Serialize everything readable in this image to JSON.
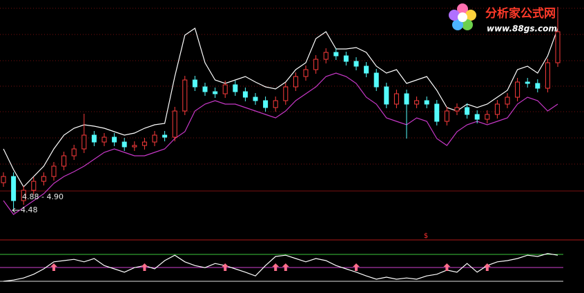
{
  "chart_data": {
    "type": "candlestick",
    "ylim": [
      4.0,
      10.6
    ],
    "up_color": "#ff3c3c",
    "down_color": "#54fcfc",
    "open": [
      5.3,
      5.48,
      4.78,
      5.08,
      5.34,
      5.48,
      5.78,
      6.08,
      6.28,
      6.68,
      6.48,
      6.62,
      6.48,
      6.34,
      6.38,
      6.48,
      6.68,
      6.62,
      7.38,
      8.28,
      8.08,
      7.94,
      7.88,
      8.14,
      7.94,
      7.78,
      7.68,
      7.48,
      7.68,
      8.08,
      8.38,
      8.58,
      8.88,
      9.08,
      8.98,
      8.82,
      8.68,
      8.48,
      8.08,
      7.58,
      7.88,
      7.58,
      7.68,
      7.58,
      7.08,
      7.38,
      7.48,
      7.28,
      7.14,
      7.28,
      7.58,
      7.78,
      8.22,
      8.18,
      8.04,
      8.78
    ],
    "high": [
      5.6,
      5.6,
      5.2,
      5.46,
      5.6,
      5.9,
      6.2,
      6.4,
      7.3,
      6.8,
      6.74,
      6.74,
      6.6,
      6.5,
      6.6,
      6.8,
      6.8,
      7.5,
      8.4,
      8.4,
      8.2,
      8.06,
      8.26,
      8.26,
      8.06,
      7.9,
      7.8,
      7.8,
      8.2,
      8.5,
      8.7,
      9.0,
      9.2,
      9.2,
      9.1,
      8.94,
      8.8,
      8.6,
      8.2,
      8.0,
      8.0,
      7.8,
      7.8,
      7.7,
      7.5,
      7.6,
      7.6,
      7.4,
      7.4,
      7.7,
      7.9,
      8.34,
      8.34,
      8.3,
      8.9,
      10.4
    ],
    "low": [
      5.18,
      4.48,
      4.66,
      4.96,
      5.22,
      5.36,
      5.66,
      5.96,
      6.16,
      6.36,
      6.36,
      6.36,
      6.22,
      6.22,
      6.26,
      6.36,
      6.5,
      6.5,
      7.26,
      7.96,
      7.82,
      7.76,
      7.76,
      7.82,
      7.66,
      7.56,
      7.36,
      7.36,
      7.56,
      7.96,
      8.26,
      8.46,
      8.76,
      8.86,
      8.7,
      8.56,
      8.36,
      7.96,
      7.46,
      7.46,
      6.58,
      7.46,
      7.46,
      6.96,
      6.96,
      7.26,
      7.16,
      7.02,
      7.02,
      7.16,
      7.46,
      7.66,
      8.06,
      7.92,
      7.92,
      8.66
    ],
    "close": [
      5.48,
      4.78,
      5.08,
      5.34,
      5.48,
      5.78,
      6.08,
      6.28,
      6.68,
      6.48,
      6.62,
      6.48,
      6.34,
      6.38,
      6.48,
      6.68,
      6.62,
      7.38,
      8.28,
      8.08,
      7.94,
      7.88,
      8.14,
      7.94,
      7.78,
      7.68,
      7.48,
      7.68,
      8.08,
      8.38,
      8.58,
      8.88,
      9.08,
      8.98,
      8.82,
      8.68,
      8.48,
      8.08,
      7.58,
      7.88,
      7.58,
      7.68,
      7.58,
      7.08,
      7.38,
      7.48,
      7.28,
      7.14,
      7.28,
      7.58,
      7.78,
      8.22,
      8.18,
      8.04,
      8.78,
      9.68
    ],
    "lines": [
      {
        "color": "#ffffff",
        "values": [
          6.28,
          5.68,
          5.18,
          5.48,
          5.78,
          6.28,
          6.68,
          6.88,
          6.98,
          6.94,
          6.88,
          6.78,
          6.68,
          6.74,
          6.88,
          6.98,
          7.02,
          8.38,
          9.58,
          9.78,
          8.78,
          8.28,
          8.18,
          8.28,
          8.38,
          8.22,
          8.08,
          8.02,
          8.22,
          8.58,
          8.78,
          9.48,
          9.68,
          9.18,
          9.18,
          9.22,
          9.08,
          8.68,
          8.48,
          8.58,
          8.18,
          8.28,
          8.38,
          7.98,
          7.48,
          7.38,
          7.58,
          7.48,
          7.58,
          7.78,
          7.98,
          8.58,
          8.68,
          8.48,
          8.98,
          9.78
        ]
      },
      {
        "color": "#c838c8",
        "values": [
          4.78,
          4.38,
          4.58,
          4.78,
          4.98,
          5.28,
          5.48,
          5.62,
          5.78,
          5.98,
          6.18,
          6.28,
          6.18,
          6.08,
          6.08,
          6.18,
          6.28,
          6.58,
          6.78,
          7.38,
          7.58,
          7.68,
          7.58,
          7.58,
          7.48,
          7.38,
          7.28,
          7.18,
          7.38,
          7.68,
          7.88,
          8.08,
          8.38,
          8.48,
          8.38,
          8.18,
          7.78,
          7.58,
          7.18,
          7.08,
          6.98,
          7.18,
          7.08,
          6.58,
          6.38,
          6.78,
          6.98,
          7.08,
          6.98,
          7.08,
          7.18,
          7.58,
          7.78,
          7.68,
          7.38,
          7.58
        ]
      }
    ],
    "annotations": [
      {
        "text": "4.88 - 4.90"
      },
      {
        "text": "4.48"
      },
      {
        "text": "$"
      }
    ],
    "indicator": {
      "ylim": [
        0,
        100
      ],
      "color": "#ffffff",
      "signal_color": "#ff6e8c",
      "values": [
        0,
        3,
        8,
        17,
        30,
        47,
        50,
        53,
        47,
        55,
        38,
        30,
        22,
        33,
        38,
        30,
        50,
        63,
        47,
        38,
        33,
        43,
        38,
        30,
        22,
        13,
        38,
        60,
        63,
        55,
        47,
        55,
        50,
        38,
        30,
        22,
        13,
        5,
        10,
        5,
        8,
        5,
        13,
        17,
        27,
        22,
        43,
        22,
        38,
        47,
        50,
        55,
        63,
        60,
        67,
        63
      ],
      "buy_signals": [
        5,
        14,
        22,
        27,
        28,
        35,
        44,
        48
      ]
    }
  },
  "logo": {
    "title": "分析家公式网",
    "url": "www.88gs.com"
  }
}
